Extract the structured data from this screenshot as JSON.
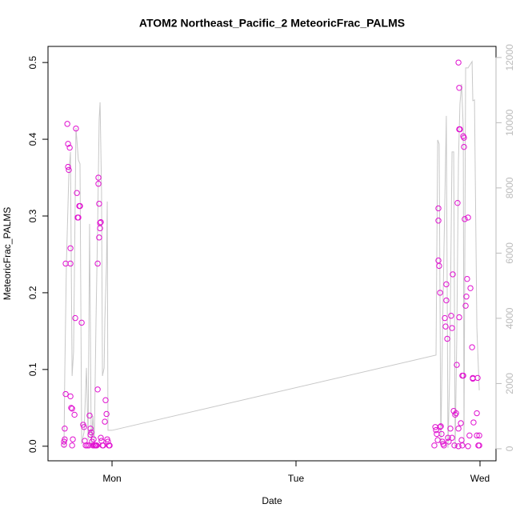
{
  "chart_data": {
    "type": "scatter",
    "title": "ATOM2 Northeast_Pacific_2 MeteoricFrac_PALMS",
    "xlabel": "Date",
    "ylabel": "MeteoricFrac_PALMS",
    "xlim": [
      -0.348,
      2.087
    ],
    "ylim": [
      -0.019,
      0.521
    ],
    "y2lim": [
      -370,
      12340
    ],
    "xticks": [
      {
        "value": 0,
        "label": "Mon"
      },
      {
        "value": 1,
        "label": "Tue"
      },
      {
        "value": 2,
        "label": "Wed"
      }
    ],
    "yticks": [
      {
        "value": 0,
        "label": "0.0"
      },
      0.1,
      0.2,
      0.3,
      0.4,
      0.5
    ],
    "y2ticks": [
      0,
      2000,
      4000,
      6000,
      8000,
      10000,
      12000
    ],
    "series": [
      {
        "type": "scatter",
        "color": "#e010d0",
        "x": [
          -0.261,
          -0.261,
          -0.257,
          -0.257,
          -0.252,
          -0.252,
          -0.243,
          -0.239,
          -0.239,
          -0.235,
          -0.23,
          -0.226,
          -0.226,
          -0.226,
          -0.222,
          -0.217,
          -0.217,
          -0.213,
          -0.204,
          -0.2,
          -0.196,
          -0.191,
          -0.187,
          -0.183,
          -0.178,
          -0.174,
          -0.165,
          -0.157,
          -0.152,
          -0.148,
          -0.143,
          -0.135,
          -0.126,
          -0.122,
          -0.117,
          -0.117,
          -0.113,
          -0.109,
          -0.104,
          -0.1,
          -0.096,
          -0.091,
          -0.087,
          -0.083,
          -0.078,
          -0.078,
          -0.074,
          -0.074,
          -0.07,
          -0.07,
          -0.065,
          -0.065,
          -0.061,
          -0.061,
          -0.057,
          -0.052,
          -0.048,
          -0.039,
          -0.035,
          -0.03,
          -0.026,
          -0.022,
          -0.017,
          -0.013,
          1.752,
          1.757,
          1.761,
          1.765,
          1.77,
          1.774,
          1.774,
          1.774,
          1.778,
          1.783,
          1.783,
          1.787,
          1.791,
          1.796,
          1.8,
          1.804,
          1.809,
          1.813,
          1.817,
          1.817,
          1.822,
          1.826,
          1.83,
          1.839,
          1.843,
          1.848,
          1.848,
          1.852,
          1.857,
          1.861,
          1.865,
          1.87,
          1.874,
          1.878,
          1.883,
          1.883,
          1.883,
          1.887,
          1.887,
          1.887,
          1.891,
          1.896,
          1.9,
          1.904,
          1.904,
          1.909,
          1.909,
          1.913,
          1.913,
          1.917,
          1.922,
          1.926,
          1.93,
          1.935,
          1.935,
          1.943,
          1.948,
          1.957,
          1.961,
          1.961,
          1.965,
          1.983,
          1.983,
          1.991,
          1.987,
          1.996,
          1.996
        ],
        "values": [
          0.002,
          0.006,
          0.009,
          0.023,
          0.068,
          0.238,
          0.42,
          0.394,
          0.364,
          0.36,
          0.389,
          0.258,
          0.238,
          0.065,
          0.05,
          0.049,
          0.001,
          0.009,
          0.041,
          0.167,
          0.414,
          0.33,
          0.298,
          0.298,
          0.313,
          0.313,
          0.161,
          0.028,
          0.025,
          0.007,
          0.001,
          0.001,
          0.001,
          0.04,
          0.023,
          0.015,
          0.018,
          0.006,
          0.001,
          0.009,
          0.001,
          0.001,
          0.001,
          0.001,
          0.074,
          0.238,
          0.35,
          0.342,
          0.316,
          0.272,
          0.284,
          0.291,
          0.292,
          0.011,
          0.007,
          0.001,
          0.001,
          0.032,
          0.06,
          0.042,
          0.009,
          0.006,
          0.001,
          0.001,
          0.001,
          0.025,
          0.021,
          0.016,
          0.008,
          0.294,
          0.31,
          0.242,
          0.235,
          0.025,
          0.2,
          0.026,
          0.016,
          0.006,
          0.003,
          0.001,
          0.167,
          0.156,
          0.19,
          0.211,
          0.14,
          0.011,
          0.006,
          0.023,
          0.17,
          0.154,
          0.011,
          0.224,
          0.046,
          0.001,
          0.041,
          0.043,
          0.106,
          0.317,
          0.023,
          0,
          0.5,
          0.168,
          0.413,
          0.467,
          0.413,
          0.03,
          0.008,
          0.001,
          0.092,
          0.092,
          0.404,
          0.402,
          0.39,
          0.296,
          0.183,
          0.195,
          0.218,
          0,
          0.298,
          0.014,
          0.206,
          0.129,
          0.088,
          0.089,
          0.031,
          0.014,
          0.043,
          0.001,
          0.089,
          0.014,
          0.001
        ]
      },
      {
        "type": "line",
        "axis": "y2",
        "color": "#c8c8c8",
        "x": [
          -0.261,
          -0.257,
          -0.248,
          -0.235,
          -0.226,
          -0.217,
          -0.209,
          -0.196,
          -0.183,
          -0.174,
          -0.165,
          -0.152,
          -0.139,
          -0.13,
          -0.122,
          -0.113,
          -0.104,
          -0.096,
          -0.087,
          -0.078,
          -0.07,
          -0.065,
          -0.057,
          -0.052,
          -0.043,
          -0.039,
          -0.03,
          -0.026,
          -0.022,
          0,
          1.761,
          1.77,
          1.778,
          1.787,
          1.796,
          1.809,
          1.817,
          1.826,
          1.835,
          1.848,
          1.857,
          1.865,
          1.874,
          1.883,
          1.891,
          1.9,
          1.909,
          1.913,
          1.922,
          1.935,
          1.957,
          1.961,
          1.97,
          1.983,
          1.996
        ],
        "values": [
          25,
          2233,
          5669,
          8368,
          9104,
          2233,
          2969,
          9840,
          8859,
          8736,
          147,
          515,
          2479,
          270,
          6896,
          147,
          1006,
          270,
          3951,
          6896,
          10086,
          10626,
          7877,
          2233,
          2479,
          3951,
          5669,
          7583,
          564,
          564,
          2871,
          9472,
          9350,
          147,
          3460,
          7632,
          10209,
          25,
          2233,
          9104,
          9104,
          25,
          3460,
          8859,
          10577,
          11190,
          9840,
          98,
          11681,
          11681,
          11877,
          10675,
          10699,
          3706,
          1791
        ]
      }
    ]
  }
}
